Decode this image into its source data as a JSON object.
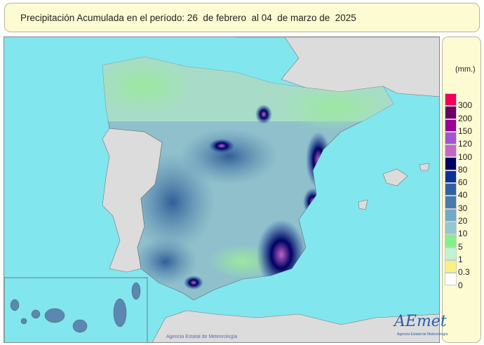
{
  "title": "Precipitación Acumulada en el período: 26  de febrero  al 04  de marzo de  2025",
  "legend": {
    "unit": "(mm.)",
    "labels": [
      "300",
      "200",
      "150",
      "120",
      "100",
      "80",
      "60",
      "40",
      "30",
      "20",
      "10",
      "5",
      "1",
      "0.3",
      "0"
    ],
    "colors": [
      "#f0005a",
      "#6a0062",
      "#9a0096",
      "#a254d0",
      "#c866c8",
      "#000062",
      "#0c3094",
      "#3062a0",
      "#4a7aaa",
      "#72a8c8",
      "#92c8d2",
      "#82f088",
      "#c2f2d4",
      "#f8f080",
      "#ffffff"
    ]
  },
  "map": {
    "sea_color": "#82e6ee",
    "land_color": "#dcdcdc",
    "credit": "Agencia Estatal de Meteorología"
  },
  "logo": {
    "text": "AEmet",
    "subtitle": "Agencia Estatal de Meteorología"
  }
}
